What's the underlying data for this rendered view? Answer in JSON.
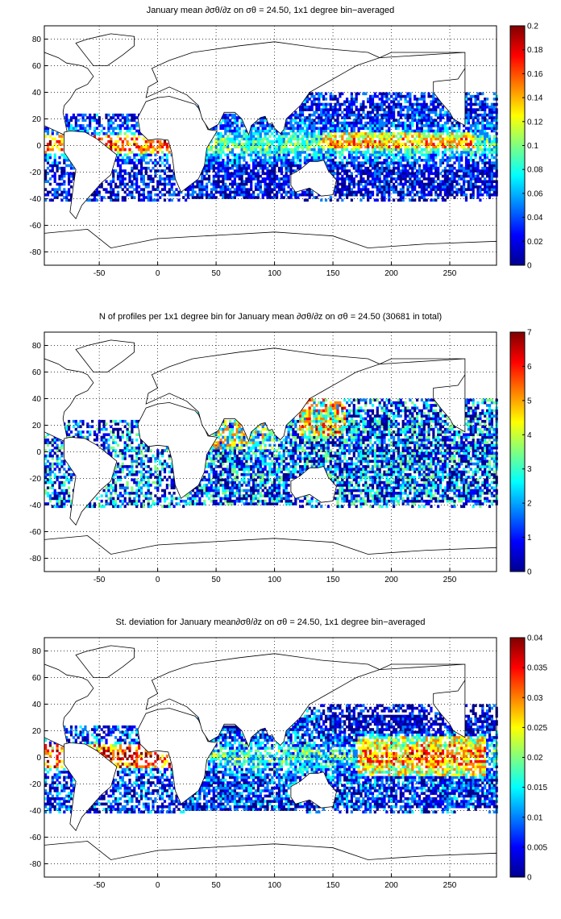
{
  "figure": {
    "colormap": [
      "#00008f",
      "#0000ff",
      "#0080ff",
      "#00ffff",
      "#80ff80",
      "#ffff00",
      "#ff8000",
      "#ff0000",
      "#800000"
    ],
    "land_color": "#ffffff",
    "coast_color": "#000000",
    "grid": "dotted"
  },
  "chart_data": [
    {
      "type": "heatmap",
      "title": "January mean ∂σθ/∂z on σθ = 24.50, 1x1 degree bin−averaged",
      "xlim": [
        -97,
        290
      ],
      "ylim": [
        -90,
        90
      ],
      "xticks": [
        "-50",
        "0",
        "50",
        "100",
        "150",
        "200",
        "250"
      ],
      "xtick_values": [
        -50,
        0,
        50,
        100,
        150,
        200,
        250
      ],
      "yticks": [
        "80",
        "60",
        "40",
        "20",
        "0",
        "-20",
        "-40",
        "-60",
        "-80"
      ],
      "ytick_values": [
        80,
        60,
        40,
        20,
        0,
        -20,
        -40,
        -60,
        -80
      ],
      "colorbar": {
        "min": 0,
        "max": 0.2,
        "ticks": [
          "0.2",
          "0.18",
          "0.16",
          "0.14",
          "0.12",
          "0.1",
          "0.08",
          "0.06",
          "0.04",
          "0.02",
          "0"
        ],
        "tick_values": [
          0.2,
          0.18,
          0.16,
          0.14,
          0.12,
          0.1,
          0.08,
          0.06,
          0.04,
          0.02,
          0
        ]
      }
    },
    {
      "type": "heatmap",
      "title": "N of profiles per 1x1 degree bin for January mean ∂σθ/∂z on σθ = 24.50 (30681 in total)",
      "total_profiles": 30681,
      "xlim": [
        -97,
        290
      ],
      "ylim": [
        -90,
        90
      ],
      "xticks": [
        "-50",
        "0",
        "50",
        "100",
        "150",
        "200",
        "250"
      ],
      "xtick_values": [
        -50,
        0,
        50,
        100,
        150,
        200,
        250
      ],
      "yticks": [
        "80",
        "60",
        "40",
        "20",
        "0",
        "-20",
        "-40",
        "-60",
        "-80"
      ],
      "ytick_values": [
        80,
        60,
        40,
        20,
        0,
        -20,
        -40,
        -60,
        -80
      ],
      "colorbar": {
        "min": 0,
        "max": 7,
        "ticks": [
          "7",
          "6",
          "5",
          "4",
          "3",
          "2",
          "1",
          "0"
        ],
        "tick_values": [
          7,
          6,
          5,
          4,
          3,
          2,
          1,
          0
        ]
      }
    },
    {
      "type": "heatmap",
      "title": "St. deviation for January mean∂σθ/∂z on σθ = 24.50, 1x1 degree bin−averaged",
      "xlim": [
        -97,
        290
      ],
      "ylim": [
        -90,
        90
      ],
      "xticks": [
        "-50",
        "0",
        "50",
        "100",
        "150",
        "200",
        "250"
      ],
      "xtick_values": [
        -50,
        0,
        50,
        100,
        150,
        200,
        250
      ],
      "yticks": [
        "80",
        "60",
        "40",
        "20",
        "0",
        "-20",
        "-40",
        "-60",
        "-80"
      ],
      "ytick_values": [
        80,
        60,
        40,
        20,
        0,
        -20,
        -40,
        -60,
        -80
      ],
      "colorbar": {
        "min": 0,
        "max": 0.04,
        "ticks": [
          "0.04",
          "0.035",
          "0.03",
          "0.025",
          "0.02",
          "0.015",
          "0.01",
          "0.005",
          "0"
        ],
        "tick_values": [
          0.04,
          0.035,
          0.03,
          0.025,
          0.02,
          0.015,
          0.01,
          0.005,
          0
        ]
      }
    }
  ]
}
